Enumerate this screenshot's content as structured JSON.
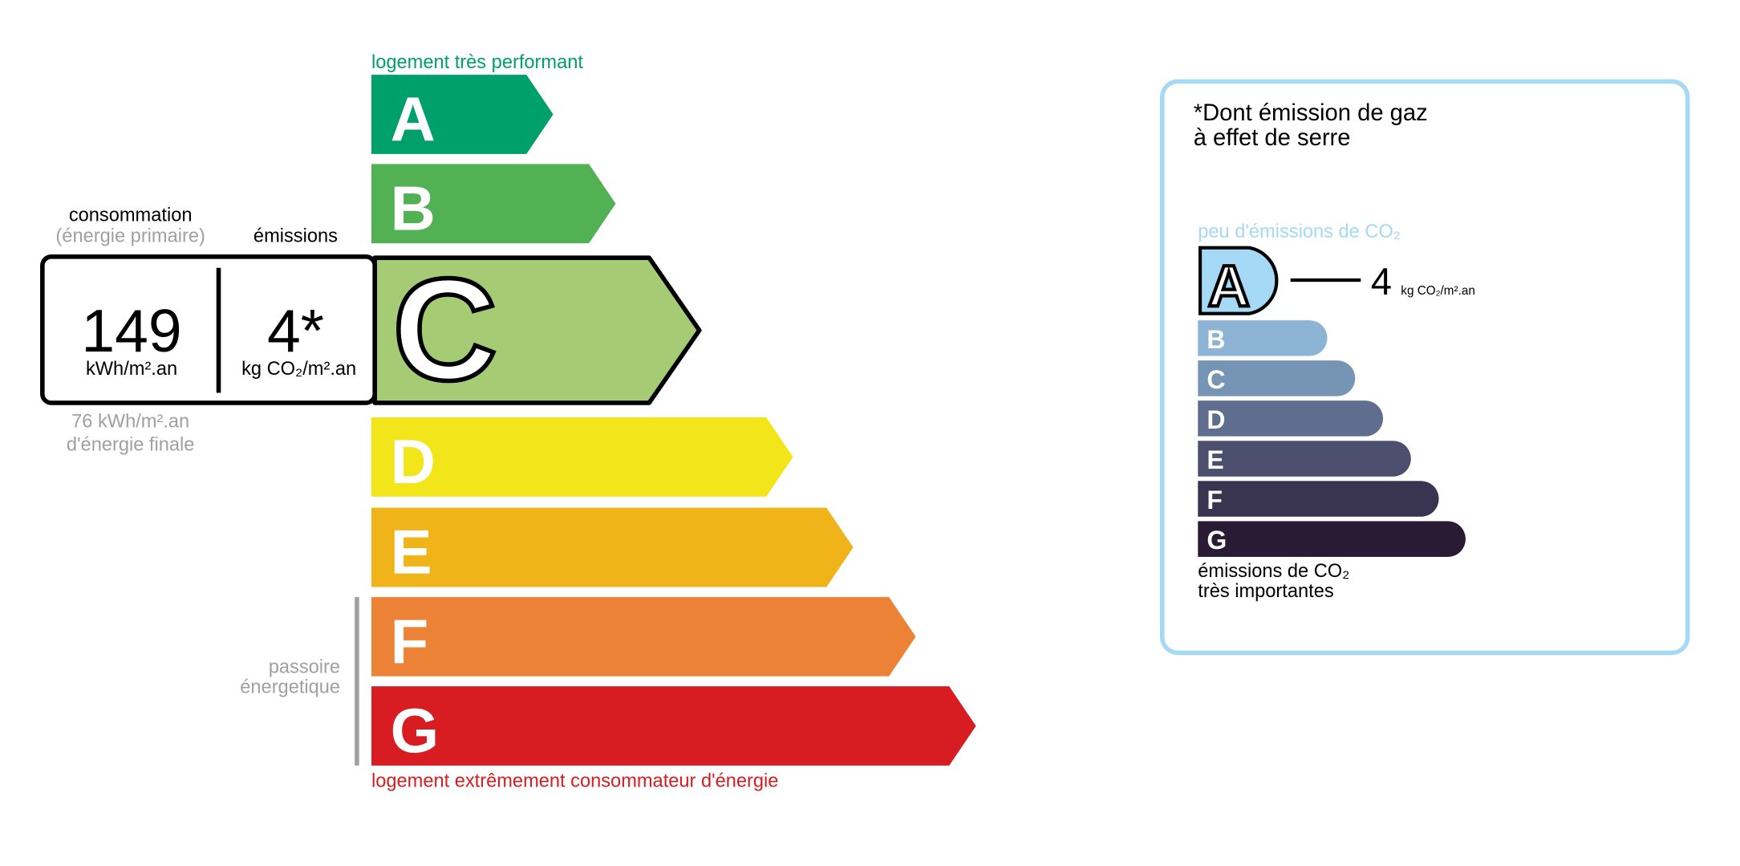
{
  "chart_data": {
    "type": "bar",
    "energy": {
      "top_label": "logement très performant",
      "bottom_label": "logement extrêmement consommateur d'énergie",
      "passoire_label": [
        "passoire",
        "énergetique"
      ],
      "classes": [
        {
          "letter": "A",
          "color": "#00a06a"
        },
        {
          "letter": "B",
          "color": "#51b153"
        },
        {
          "letter": "C",
          "color": "#a5cc74"
        },
        {
          "letter": "D",
          "color": "#f2e61a"
        },
        {
          "letter": "E",
          "color": "#f0b41a"
        },
        {
          "letter": "F",
          "color": "#eb8235"
        },
        {
          "letter": "G",
          "color": "#d71d21"
        }
      ],
      "selected_class": "C",
      "consumption_header": "consommation",
      "consumption_sub": "(énergie primaire)",
      "emissions_header": "émissions",
      "consumption_value": "149",
      "consumption_unit": "kWh/m².an",
      "emissions_value": "4*",
      "emissions_unit": "kg CO₂/m².an",
      "final_energy_value": "76 kWh/m².an",
      "final_energy_label": "d'énergie finale"
    },
    "ges": {
      "title_line1": "*Dont émission de gaz",
      "title_line2": "à effet de serre",
      "top_label": "peu d'émissions de CO₂",
      "bottom_label_line1": "émissions de CO₂",
      "bottom_label_line2": "très importantes",
      "classes": [
        {
          "letter": "A",
          "color": "#a5d9f5"
        },
        {
          "letter": "B",
          "color": "#8db4d4"
        },
        {
          "letter": "C",
          "color": "#7695b5"
        },
        {
          "letter": "D",
          "color": "#5f6e8f"
        },
        {
          "letter": "E",
          "color": "#4d4f6e"
        },
        {
          "letter": "F",
          "color": "#39344f"
        },
        {
          "letter": "G",
          "color": "#2a1b35"
        }
      ],
      "selected_class": "A",
      "value": "4",
      "unit": "kg CO₂/m².an"
    },
    "colors": {
      "panel_border": "#a5d9f5",
      "top_label": "#00a06a",
      "bottom_label": "#d71d21",
      "muted": "#a0a0a0"
    }
  }
}
